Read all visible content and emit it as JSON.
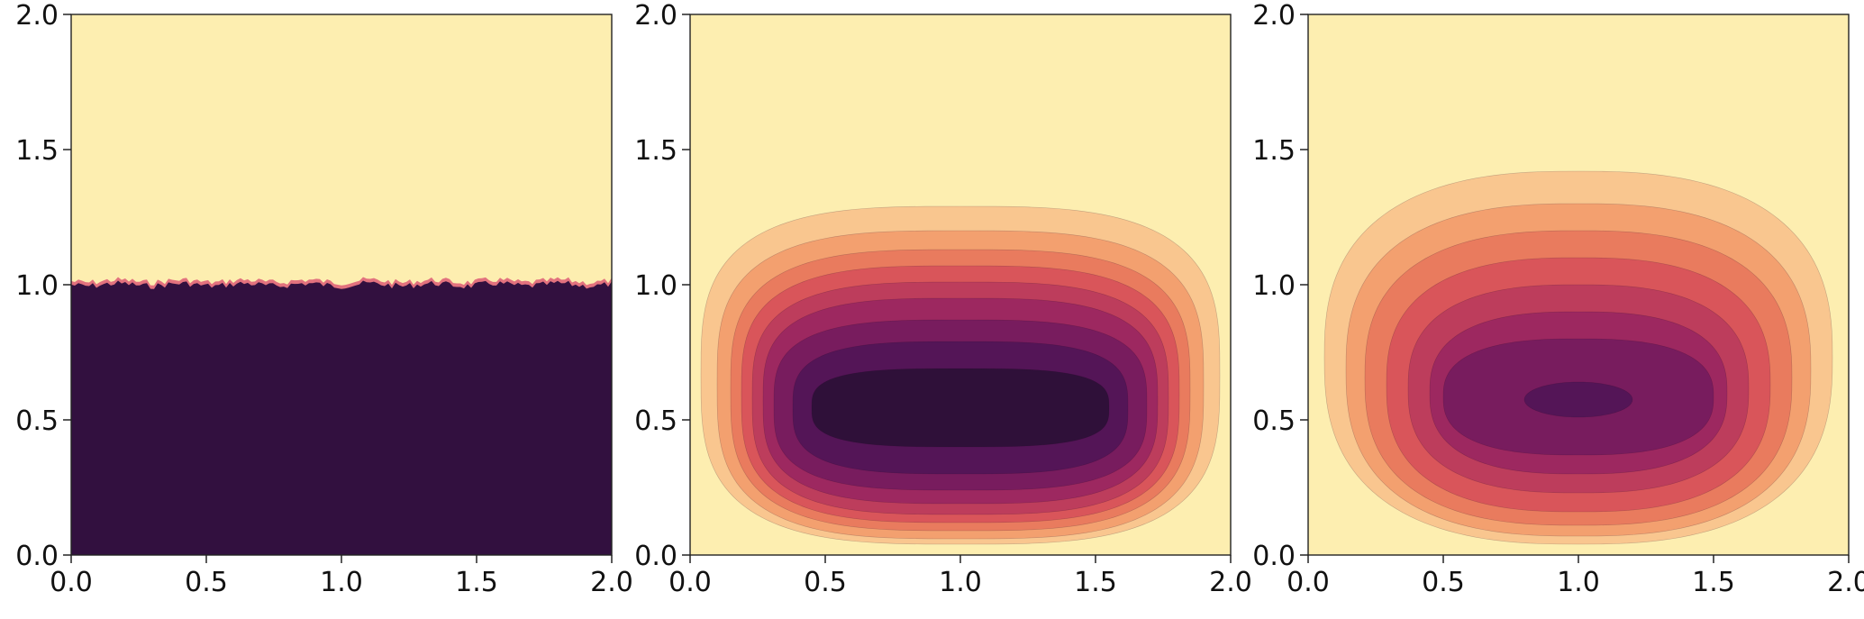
{
  "chart_data": [
    {
      "type": "heatmap",
      "panel": "left",
      "xlim": [
        0.0,
        2.0
      ],
      "ylim": [
        0.0,
        2.0
      ],
      "x_ticks": [
        "0.0",
        "0.5",
        "1.0",
        "1.5",
        "2.0"
      ],
      "y_ticks": [
        "0.0",
        "0.5",
        "1.0",
        "1.5",
        "2.0"
      ],
      "grid": false,
      "description": "lower half dark, upper half light, rough interface at y≈1.0",
      "interface_y": 1.0
    },
    {
      "type": "heatmap",
      "panel": "middle",
      "xlim": [
        0.0,
        2.0
      ],
      "ylim": [
        0.0,
        2.0
      ],
      "x_ticks": [
        "0.0",
        "0.5",
        "1.0",
        "1.5",
        "2.0"
      ],
      "y_ticks": [
        "0.0",
        "0.5",
        "1.0",
        "1.5",
        "2.0"
      ],
      "grid": false,
      "contour_levels": [
        {
          "x": [
            0.04,
            1.96
          ],
          "y": [
            0.04,
            1.29
          ],
          "color": "#f9c68f"
        },
        {
          "x": [
            0.1,
            1.9
          ],
          "y": [
            0.06,
            1.2
          ],
          "color": "#f3a06f"
        },
        {
          "x": [
            0.15,
            1.85
          ],
          "y": [
            0.09,
            1.13
          ],
          "color": "#e97b5e"
        },
        {
          "x": [
            0.19,
            1.81
          ],
          "y": [
            0.12,
            1.07
          ],
          "color": "#d9555a"
        },
        {
          "x": [
            0.23,
            1.77
          ],
          "y": [
            0.15,
            1.01
          ],
          "color": "#bd3d5c"
        },
        {
          "x": [
            0.27,
            1.73
          ],
          "y": [
            0.19,
            0.95
          ],
          "color": "#9d2860"
        },
        {
          "x": [
            0.31,
            1.69
          ],
          "y": [
            0.24,
            0.87
          ],
          "color": "#781c5e"
        },
        {
          "x": [
            0.38,
            1.62
          ],
          "y": [
            0.3,
            0.79
          ],
          "color": "#541557"
        },
        {
          "x": [
            0.45,
            1.55
          ],
          "y": [
            0.4,
            0.69
          ],
          "color": "#2f1039"
        }
      ]
    },
    {
      "type": "heatmap",
      "panel": "right",
      "xlim": [
        0.0,
        2.0
      ],
      "ylim": [
        0.0,
        2.0
      ],
      "x_ticks": [
        "0.0",
        "0.5",
        "1.0",
        "1.5",
        "2.0"
      ],
      "y_ticks": [
        "0.0",
        "0.5",
        "1.0",
        "1.5",
        "2.0"
      ],
      "grid": false,
      "contour_levels": [
        {
          "x": [
            0.06,
            1.94
          ],
          "y": [
            0.04,
            1.42
          ],
          "color": "#f9c68f"
        },
        {
          "x": [
            0.14,
            1.86
          ],
          "y": [
            0.07,
            1.3
          ],
          "color": "#f3a06f"
        },
        {
          "x": [
            0.21,
            1.79
          ],
          "y": [
            0.11,
            1.2
          ],
          "color": "#e97b5e"
        },
        {
          "x": [
            0.29,
            1.71
          ],
          "y": [
            0.16,
            1.1
          ],
          "color": "#d9555a"
        },
        {
          "x": [
            0.37,
            1.63
          ],
          "y": [
            0.23,
            1.0
          ],
          "color": "#bd3d5c"
        },
        {
          "x": [
            0.45,
            1.55
          ],
          "y": [
            0.3,
            0.9
          ],
          "color": "#9d2860"
        },
        {
          "x": [
            0.5,
            1.5
          ],
          "y": [
            0.37,
            0.8
          ],
          "color": "#781c5e"
        },
        {
          "x": [
            0.8,
            1.2
          ],
          "y": [
            0.51,
            0.64
          ],
          "color": "#541557"
        }
      ]
    }
  ],
  "colors": {
    "background": "#fdeeb0",
    "dark": "#32103f",
    "interface": "#e2727e"
  }
}
